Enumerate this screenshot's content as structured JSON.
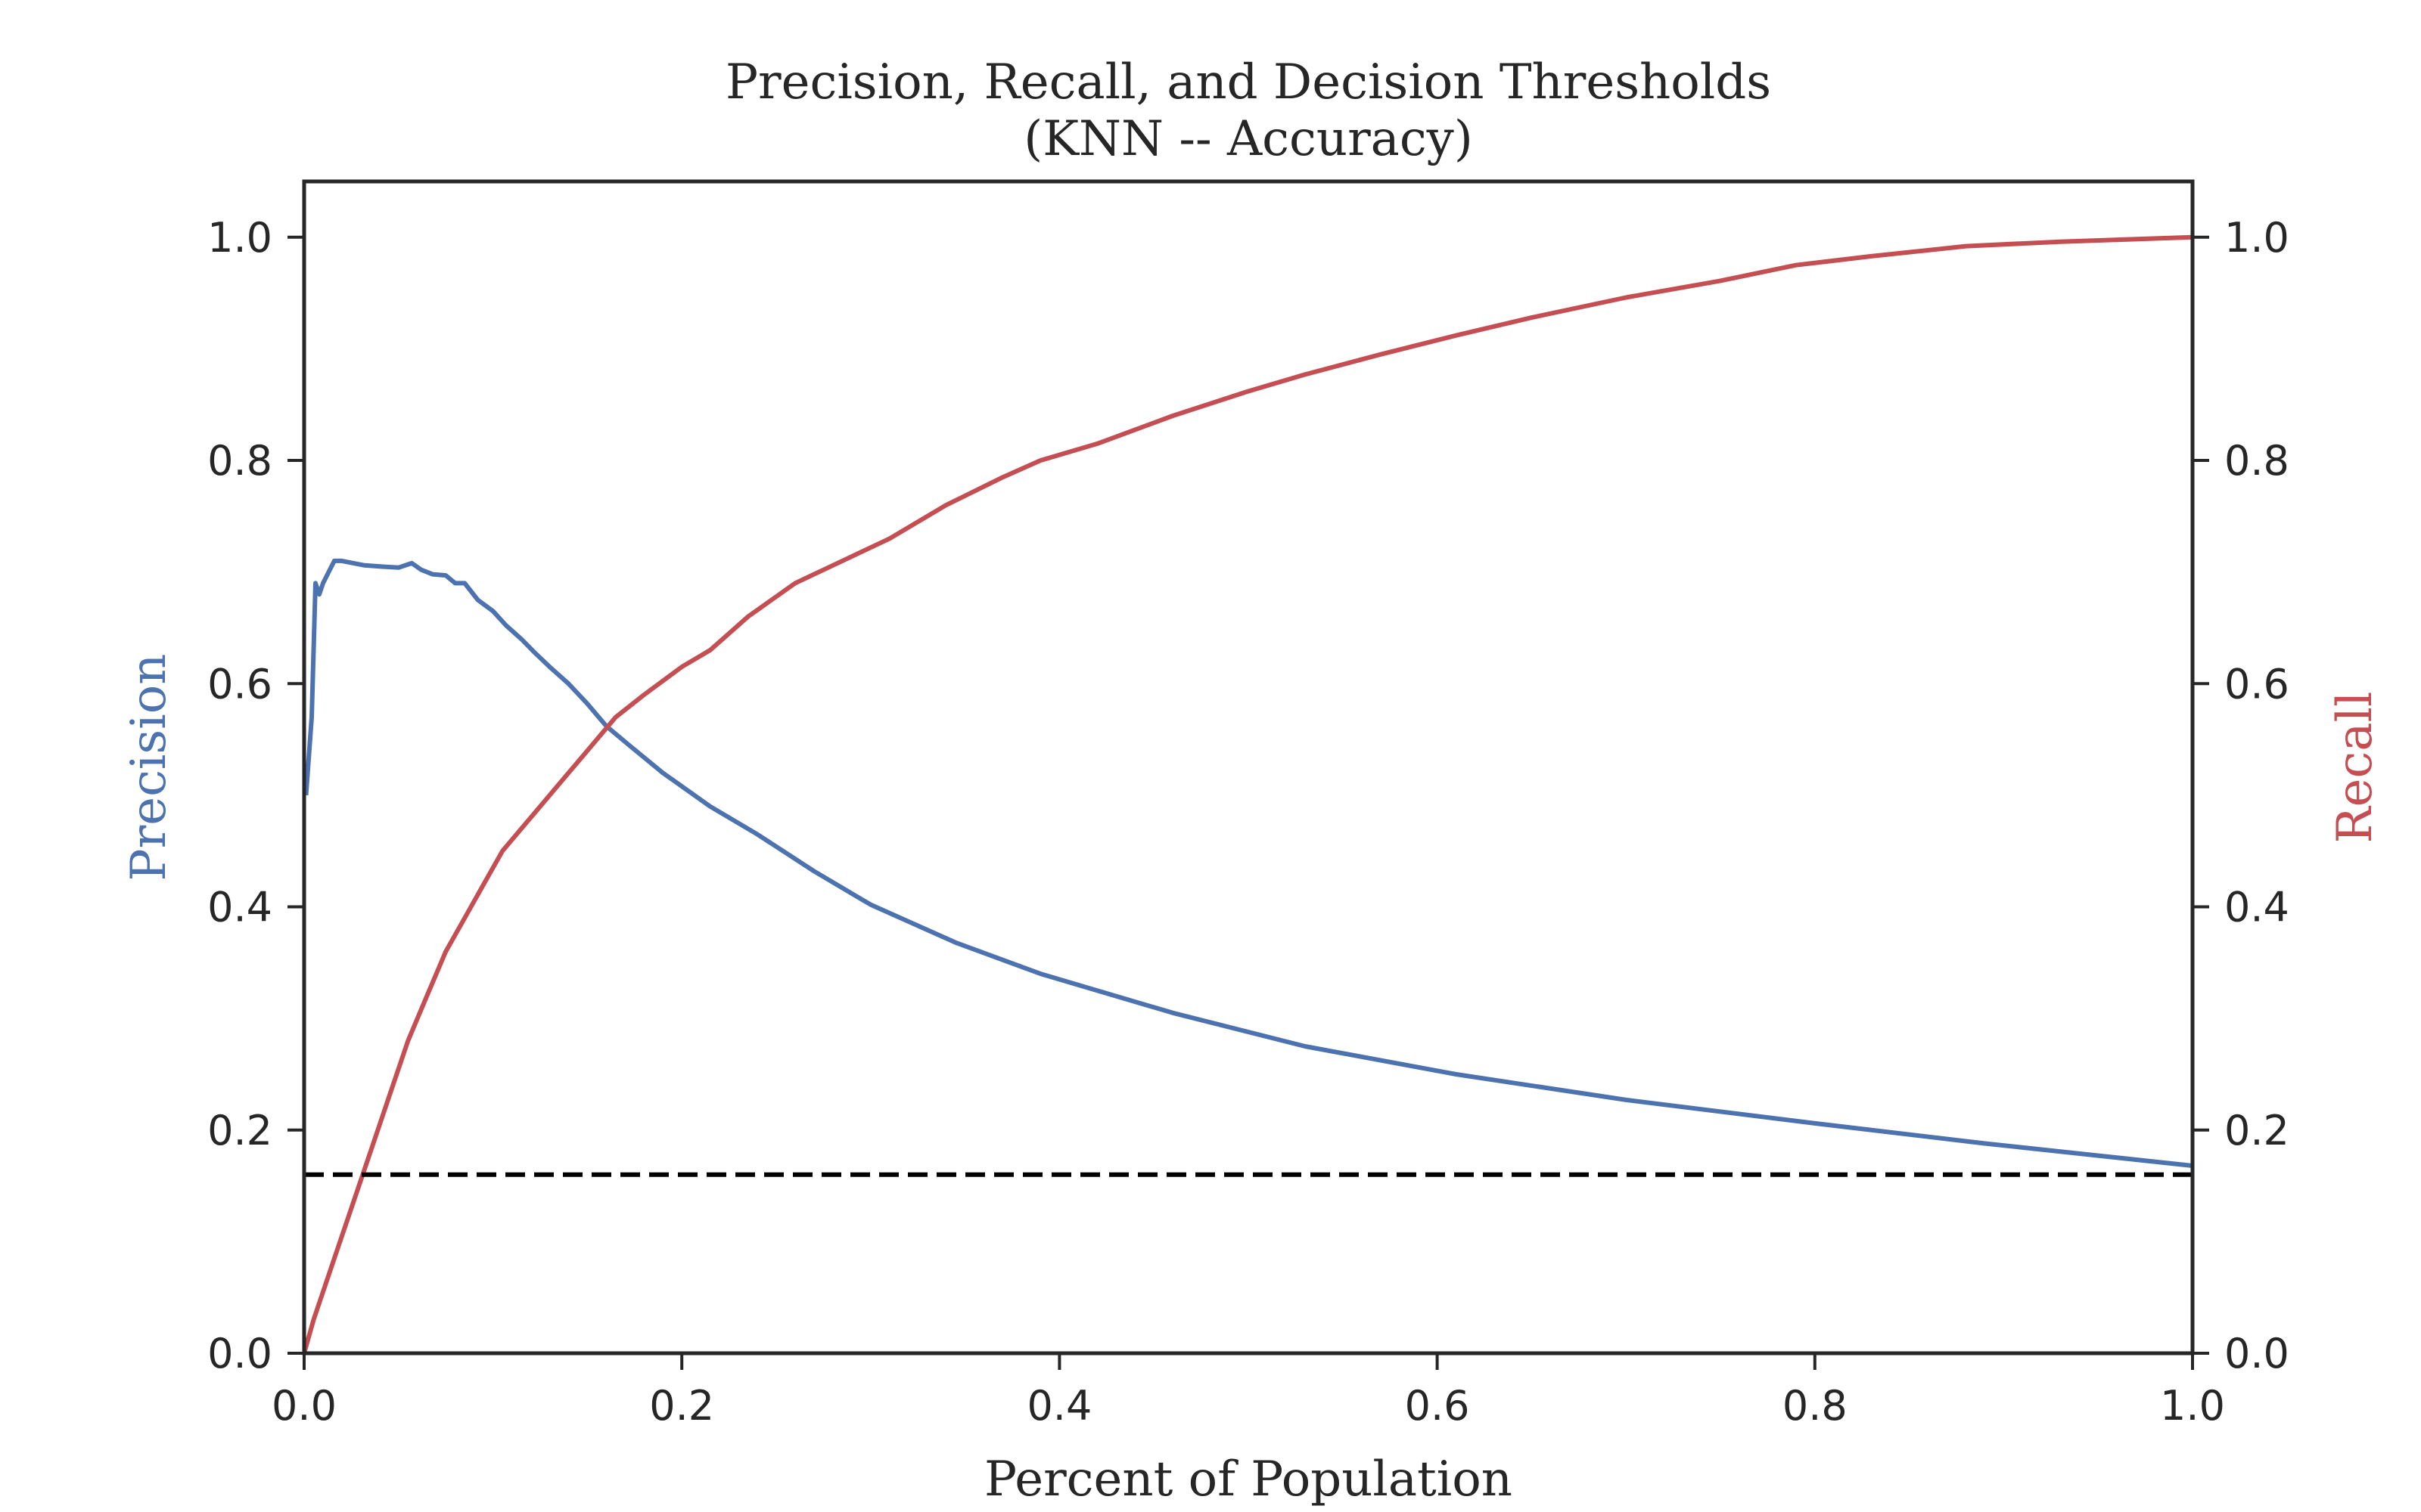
{
  "chart_data": {
    "type": "line",
    "title": "Precision, Recall, and Decision Thresholds",
    "subtitle": "(KNN -- Accuracy)",
    "xlabel": "Percent of Population",
    "ylabel_left": "Precision",
    "ylabel_right": "Recall",
    "xlim": [
      0,
      1
    ],
    "ylim_left": [
      0,
      1.05
    ],
    "ylim_right": [
      0,
      1.05
    ],
    "xticks": [
      "0.0",
      "0.2",
      "0.4",
      "0.6",
      "0.8",
      "1.0"
    ],
    "yticks_left": [
      "0.0",
      "0.2",
      "0.4",
      "0.6",
      "0.8",
      "1.0"
    ],
    "yticks_right": [
      "0.0",
      "0.2",
      "0.4",
      "0.6",
      "0.8",
      "1.0"
    ],
    "grid": false,
    "colors": {
      "precision": "#4c72b0",
      "recall": "#c44e52",
      "baseline": "#000000",
      "axes": "#262626"
    },
    "series": [
      {
        "name": "Precision",
        "axis": "left",
        "x": [
          0.001,
          0.004,
          0.006,
          0.008,
          0.01,
          0.013,
          0.016,
          0.02,
          0.026,
          0.032,
          0.04,
          0.05,
          0.057,
          0.062,
          0.068,
          0.075,
          0.08,
          0.085,
          0.092,
          0.1,
          0.107,
          0.115,
          0.122,
          0.13,
          0.14,
          0.15,
          0.16,
          0.172,
          0.19,
          0.215,
          0.24,
          0.27,
          0.3,
          0.345,
          0.39,
          0.46,
          0.53,
          0.61,
          0.7,
          0.8,
          0.89,
          1.0
        ],
        "y": [
          0.5,
          0.57,
          0.69,
          0.68,
          0.69,
          0.7,
          0.71,
          0.71,
          0.708,
          0.706,
          0.705,
          0.704,
          0.708,
          0.702,
          0.698,
          0.697,
          0.69,
          0.69,
          0.675,
          0.665,
          0.652,
          0.64,
          0.628,
          0.615,
          0.6,
          0.582,
          0.562,
          0.545,
          0.52,
          0.49,
          0.465,
          0.432,
          0.402,
          0.368,
          0.34,
          0.305,
          0.275,
          0.25,
          0.227,
          0.206,
          0.188,
          0.168
        ]
      },
      {
        "name": "Recall",
        "axis": "right",
        "x": [
          0.0,
          0.005,
          0.015,
          0.025,
          0.035,
          0.045,
          0.055,
          0.065,
          0.075,
          0.085,
          0.095,
          0.105,
          0.115,
          0.125,
          0.135,
          0.15,
          0.165,
          0.18,
          0.2,
          0.215,
          0.235,
          0.26,
          0.285,
          0.31,
          0.34,
          0.37,
          0.39,
          0.42,
          0.46,
          0.5,
          0.53,
          0.57,
          0.61,
          0.65,
          0.7,
          0.75,
          0.79,
          0.83,
          0.88,
          0.93,
          1.0
        ],
        "y": [
          0.0,
          0.03,
          0.08,
          0.13,
          0.18,
          0.23,
          0.28,
          0.32,
          0.36,
          0.39,
          0.42,
          0.45,
          0.47,
          0.49,
          0.51,
          0.54,
          0.57,
          0.59,
          0.615,
          0.63,
          0.66,
          0.69,
          0.71,
          0.73,
          0.76,
          0.785,
          0.8,
          0.815,
          0.84,
          0.862,
          0.877,
          0.895,
          0.912,
          0.928,
          0.946,
          0.961,
          0.975,
          0.983,
          0.992,
          0.996,
          1.0
        ]
      },
      {
        "name": "Baseline",
        "axis": "left",
        "style": "dashed",
        "x": [
          0.0,
          1.0
        ],
        "y": [
          0.16,
          0.16
        ]
      }
    ]
  }
}
